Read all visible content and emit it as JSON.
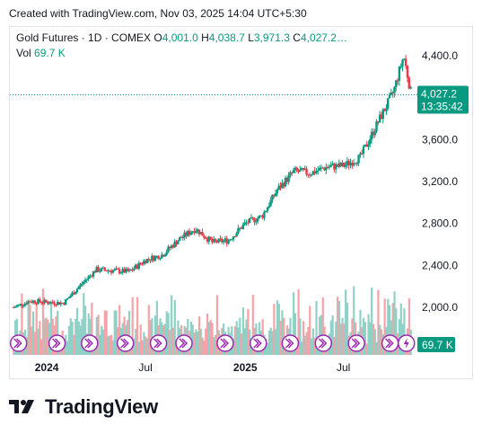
{
  "header": {
    "created": "Created with TradingView.com, Nov 03, 2025 14:04 UTC+5:30"
  },
  "legend": {
    "title": "Gold Futures · 1D · COMEX",
    "o_label": "O",
    "o_value": "4,001.0",
    "h_label": "H",
    "h_value": "4,038.7",
    "l_label": "L",
    "l_value": "3,971.3",
    "c_label": "C",
    "c_value": "4,027.2…",
    "vol_label": "Vol",
    "vol_value": "69.7 K"
  },
  "price_tag": {
    "price": "4,027.2",
    "countdown": "13:35:42"
  },
  "volume_tag": "69.7 K",
  "footer": {
    "brand": "TradingView"
  },
  "colors": {
    "up": "#089981",
    "down": "#f23645",
    "vol_up": "#8fd1c6",
    "vol_down": "#f5a3a8",
    "tag_bg": "#089981",
    "event_icon": "#9c27b0"
  },
  "icons": [
    "dividend-arrow-icon",
    "lightning-icon",
    "tradingview-logo-icon"
  ],
  "chart_data": {
    "type": "candlestick",
    "title": "Gold Futures · 1D · COMEX",
    "y_ticks": [
      4400,
      3600,
      3200,
      2800,
      2400,
      2000
    ],
    "y_tick_labels": [
      "4,400.0",
      "3,600.0",
      "3,200.0",
      "2,800.0",
      "2,400.0",
      "2,000.0"
    ],
    "x_tick_labels": [
      "2024",
      "Jul",
      "2025",
      "Jul"
    ],
    "x_tick_bold": [
      true,
      false,
      true,
      false
    ],
    "x_tick_dates": [
      "2024-01-01",
      "2024-07-01",
      "2025-01-01",
      "2025-07-01"
    ],
    "last_price": 4027.2,
    "ylim": [
      1950,
      4500
    ],
    "close_series": {
      "x": [
        "2023-11-01",
        "2023-12-01",
        "2024-01-01",
        "2024-02-01",
        "2024-03-01",
        "2024-04-01",
        "2024-05-01",
        "2024-06-01",
        "2024-07-01",
        "2024-08-01",
        "2024-09-01",
        "2024-10-01",
        "2024-11-01",
        "2024-12-01",
        "2025-01-01",
        "2025-02-01",
        "2025-03-01",
        "2025-04-01",
        "2025-05-01",
        "2025-06-01",
        "2025-07-01",
        "2025-08-01",
        "2025-09-01",
        "2025-10-01",
        "2025-10-20",
        "2025-11-03"
      ],
      "values": [
        2000,
        2060,
        2050,
        2040,
        2200,
        2360,
        2350,
        2340,
        2450,
        2500,
        2650,
        2750,
        2620,
        2640,
        2800,
        2870,
        3120,
        3300,
        3280,
        3340,
        3350,
        3430,
        3750,
        4050,
        4400,
        4027
      ]
    },
    "volume_events": {
      "dividend_dates": [
        "2023-11-10",
        "2024-01-20",
        "2024-03-20",
        "2024-05-25",
        "2024-07-25",
        "2024-09-10",
        "2024-11-25",
        "2025-01-25",
        "2025-03-25",
        "2025-05-25",
        "2025-07-25",
        "2025-09-25"
      ],
      "split_dates": [
        "2025-10-25"
      ]
    }
  }
}
